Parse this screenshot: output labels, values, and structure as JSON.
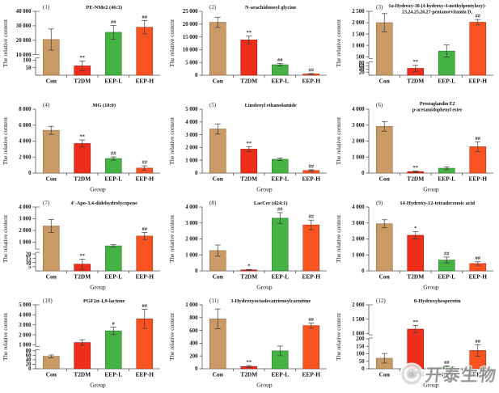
{
  "watermark": {
    "text": "开泰生物"
  },
  "chart_data": {
    "type": "bar",
    "categories": [
      "Con",
      "T2DM",
      "EEP-L",
      "EEP-H"
    ],
    "group_colors": {
      "Con": {
        "fill": "#C99A66",
        "stroke": "#8F6B3F"
      },
      "T2DM": {
        "fill": "#EE2D1A",
        "stroke": "#A51708"
      },
      "EEP-L": {
        "fill": "#45B244",
        "stroke": "#2B7C2B"
      },
      "EEP-H": {
        "fill": "#F95321",
        "stroke": "#B03410"
      }
    },
    "ylabel": "The relative content",
    "xlabel": "Group",
    "error_bar_color": "#3a3a3a",
    "axis_color": "#555555",
    "legend": "none",
    "grid": false,
    "charts": [
      {
        "num": "(1)",
        "title": "PE-NMe2 (46:3)",
        "show_xlabel": false,
        "values": [
          20500,
          62,
          25500,
          29000
        ],
        "errors": [
          7300,
          33,
          4800,
          4600
        ],
        "sig": [
          "",
          "**",
          "##",
          "##"
        ],
        "axis": {
          "type": "broken",
          "bottom_frac": 0.27,
          "bottom": {
            "min": 0,
            "max": 115,
            "ticks": [
              50,
              100
            ]
          },
          "top": {
            "min": 10000,
            "max": 40000,
            "ticks": [
              10000,
              20000,
              30000,
              40000
            ]
          }
        }
      },
      {
        "num": "(2)",
        "title": "N-arachidonoyl glycine",
        "show_xlabel": false,
        "values": [
          20700,
          13800,
          4100,
          500
        ],
        "errors": [
          2000,
          1500,
          450,
          150
        ],
        "sig": [
          "",
          "**",
          "##",
          "##"
        ],
        "axis": {
          "type": "linear",
          "min": 0,
          "max": 25000,
          "ticks": [
            0,
            5000,
            10000,
            15000,
            20000,
            25000
          ]
        }
      },
      {
        "num": "(3)",
        "title": "1α-Hydroxy-18-(4-hydroxy-4-methylpentyloxy)-",
        "title_line2": "23,24,25,26,27-pentanorvitamin D₃",
        "show_xlabel": false,
        "values": [
          2000,
          45,
          750,
          2020
        ],
        "errors": [
          400,
          20,
          270,
          120
        ],
        "sig": [
          "",
          "**",
          "",
          "##"
        ],
        "axis": {
          "type": "broken",
          "bottom_frac": 0.21,
          "bottom": {
            "min": 0,
            "max": 88,
            "ticks": [
              20,
              40,
              60,
              80
            ]
          },
          "top": {
            "min": 420,
            "max": 2500,
            "ticks": [
              500,
              1000,
              1500,
              2000,
              2500
            ]
          }
        }
      },
      {
        "num": "(4)",
        "title": "MG (18:0)",
        "show_xlabel": true,
        "values": [
          5350,
          3700,
          1820,
          620
        ],
        "errors": [
          500,
          450,
          200,
          280
        ],
        "sig": [
          "",
          "**",
          "##",
          "##"
        ],
        "axis": {
          "type": "linear",
          "min": 0,
          "max": 8000,
          "ticks": [
            0,
            2000,
            4000,
            6000,
            8000
          ]
        }
      },
      {
        "num": "(5)",
        "title": "Linoleoyl ethanolamide",
        "show_xlabel": true,
        "values": [
          3450,
          1870,
          1080,
          200
        ],
        "errors": [
          400,
          200,
          90,
          60
        ],
        "sig": [
          "",
          "**",
          "",
          "##"
        ],
        "axis": {
          "type": "linear",
          "min": 0,
          "max": 5000,
          "ticks": [
            0,
            1000,
            2000,
            3000,
            4000,
            5000
          ]
        }
      },
      {
        "num": "(6)",
        "title": "Prostaglandin E2",
        "title_line2": "p-acetamidophenyl ester",
        "show_xlabel": true,
        "values": [
          2920,
          90,
          300,
          1650
        ],
        "errors": [
          300,
          45,
          90,
          310
        ],
        "sig": [
          "",
          "**",
          "",
          "##"
        ],
        "axis": {
          "type": "linear",
          "min": 0,
          "max": 4000,
          "ticks": [
            0,
            1000,
            2000,
            3000,
            4000
          ]
        }
      },
      {
        "num": "(7)",
        "title": "4′-Apo-3,4-didehydrolycopene",
        "show_xlabel": true,
        "values": [
          2380,
          8,
          680,
          1520
        ],
        "errors": [
          550,
          6,
          120,
          300
        ],
        "sig": [
          "",
          "**",
          "",
          "##"
        ],
        "axis": {
          "type": "broken",
          "bottom_frac": 0.29,
          "bottom": {
            "min": 0,
            "max": 22,
            "ticks": [
              5,
              10,
              15,
              20
            ]
          },
          "top": {
            "min": 400,
            "max": 4000,
            "ticks": [
              1000,
              2000,
              3000,
              4000
            ]
          }
        }
      },
      {
        "num": "(8)",
        "title": "LacCer (d24:1)",
        "show_xlabel": true,
        "values": [
          1270,
          60,
          3300,
          2880
        ],
        "errors": [
          350,
          30,
          350,
          300
        ],
        "sig": [
          "",
          "*",
          "##",
          "##"
        ],
        "axis": {
          "type": "linear",
          "min": 0,
          "max": 4000,
          "ticks": [
            0,
            1000,
            2000,
            3000,
            4000
          ]
        }
      },
      {
        "num": "(9)",
        "title": "14-Hydroxy-12-tetradecenoic acid",
        "show_xlabel": true,
        "values": [
          2950,
          2230,
          680,
          460
        ],
        "errors": [
          250,
          230,
          180,
          110
        ],
        "sig": [
          "",
          "*",
          "##",
          "##"
        ],
        "axis": {
          "type": "linear",
          "min": 0,
          "max": 4000,
          "ticks": [
            0,
            1000,
            2000,
            3000,
            4000
          ]
        }
      },
      {
        "num": "(10)",
        "title": "PGF2α-1,9-lactone",
        "show_xlabel": true,
        "values": [
          55,
          1230,
          2400,
          3600
        ],
        "errors": [
          6,
          280,
          380,
          950
        ],
        "sig": [
          "",
          "",
          "#",
          "##"
        ],
        "axis": {
          "type": "broken",
          "bottom_frac": 0.3,
          "bottom": {
            "min": 0,
            "max": 85,
            "ticks": [
              0,
              20,
              40,
              60,
              80
            ]
          },
          "top": {
            "min": 850,
            "max": 5000,
            "ticks": [
              1000,
              2000,
              3000,
              4000,
              5000
            ]
          }
        }
      },
      {
        "num": "(11)",
        "title": "3-Hydroxyoctadecatrienoylcarnitine",
        "show_xlabel": true,
        "values": [
          780,
          35,
          280,
          675
        ],
        "errors": [
          155,
          15,
          75,
          40
        ],
        "sig": [
          "",
          "**",
          "",
          "##"
        ],
        "axis": {
          "type": "linear",
          "min": 0,
          "max": 1000,
          "ticks": [
            0,
            200,
            400,
            600,
            800,
            1000
          ]
        }
      },
      {
        "num": "(12)",
        "title": "8-Hydroxyhesperetin",
        "show_xlabel": true,
        "values": [
          70,
          1150,
          12,
          122
        ],
        "errors": [
          32,
          130,
          6,
          38
        ],
        "sig": [
          "",
          "**",
          "##",
          "##"
        ],
        "axis": {
          "type": "broken",
          "bottom_frac": 0.48,
          "bottom": {
            "min": 0,
            "max": 205,
            "ticks": [
              0,
              50,
              100,
              150,
              200
            ]
          },
          "top": {
            "min": 950,
            "max": 2000,
            "ticks": [
              1000,
              1500,
              2000
            ]
          }
        }
      }
    ]
  }
}
